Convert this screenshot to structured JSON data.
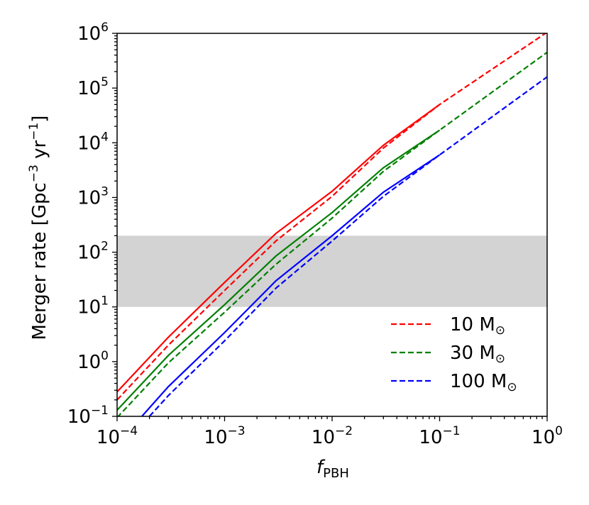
{
  "chart_data": {
    "type": "line",
    "xscale": "log",
    "yscale": "log",
    "xlim": [
      0.0001,
      1
    ],
    "ylim": [
      0.1,
      1000000
    ],
    "x_tick_exponents": [
      -4,
      -3,
      -2,
      -1,
      0
    ],
    "y_tick_exponents": [
      -1,
      0,
      1,
      2,
      3,
      4,
      5,
      6
    ],
    "xlabel": {
      "base": "f",
      "sub": "PBH"
    },
    "ylabel": {
      "main": "Merger rate",
      "units_prefix": "[Gpc",
      "units_exp1": "−3",
      "units_mid": " yr",
      "units_exp2": "−1",
      "units_suffix": "]"
    },
    "shaded_band": {
      "ymin": 10,
      "ymax": 200,
      "color": "#d3d3d3"
    },
    "legend_position": "lower-right",
    "series": [
      {
        "name": "10 M☉",
        "label_num": "10 M",
        "label_sym": "⊙",
        "color": "#ff0000",
        "solid": {
          "x": [
            0.0001,
            0.0003,
            0.001,
            0.003,
            0.01,
            0.03,
            0.1
          ],
          "y": [
            0.28,
            2.8,
            28,
            220,
            1300,
            9000,
            50000
          ]
        },
        "dashed": {
          "x": [
            0.0001,
            0.0003,
            0.001,
            0.003,
            0.01,
            0.03,
            0.1,
            1
          ],
          "y": [
            0.2,
            2.0,
            20,
            160,
            1050,
            8000,
            50000,
            1050000
          ]
        }
      },
      {
        "name": "30 M☉",
        "label_num": "30 M",
        "label_sym": "⊙",
        "color": "#008000",
        "solid": {
          "x": [
            0.0001,
            0.0003,
            0.001,
            0.003,
            0.01,
            0.03,
            0.1
          ],
          "y": [
            0.13,
            1.3,
            11,
            85,
            530,
            3500,
            17000
          ]
        },
        "dashed": {
          "x": [
            0.0001,
            0.0003,
            0.001,
            0.003,
            0.01,
            0.03,
            0.1,
            1
          ],
          "y": [
            0.095,
            0.95,
            8,
            60,
            420,
            3000,
            17000,
            450000
          ]
        }
      },
      {
        "name": "100 M☉",
        "label_num": "100 M",
        "label_sym": "⊙",
        "color": "#0000ff",
        "solid": {
          "x": [
            0.00017,
            0.0003,
            0.001,
            0.003,
            0.01,
            0.03,
            0.1
          ],
          "y": [
            0.1,
            0.35,
            3.4,
            30,
            200,
            1250,
            6000
          ]
        },
        "dashed": {
          "x": [
            0.0002,
            0.0003,
            0.001,
            0.003,
            0.01,
            0.03,
            0.1,
            1
          ],
          "y": [
            0.1,
            0.24,
            2.4,
            22,
            160,
            1050,
            6000,
            160000
          ]
        }
      }
    ]
  }
}
